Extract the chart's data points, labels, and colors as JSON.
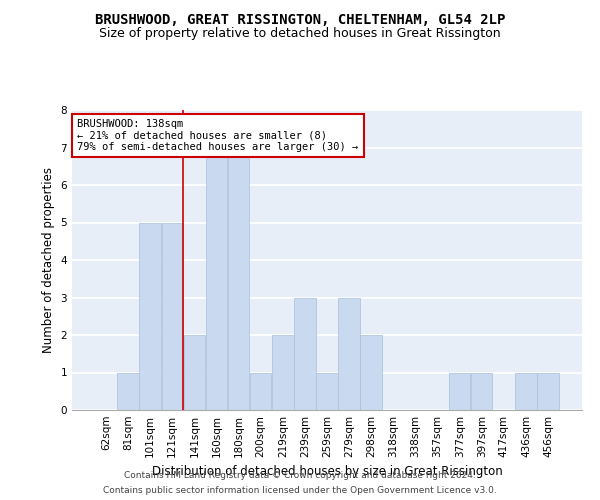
{
  "title": "BRUSHWOOD, GREAT RISSINGTON, CHELTENHAM, GL54 2LP",
  "subtitle": "Size of property relative to detached houses in Great Rissington",
  "xlabel": "Distribution of detached houses by size in Great Rissington",
  "ylabel": "Number of detached properties",
  "categories": [
    "62sqm",
    "81sqm",
    "101sqm",
    "121sqm",
    "141sqm",
    "160sqm",
    "180sqm",
    "200sqm",
    "219sqm",
    "239sqm",
    "259sqm",
    "279sqm",
    "298sqm",
    "318sqm",
    "338sqm",
    "357sqm",
    "377sqm",
    "397sqm",
    "417sqm",
    "436sqm",
    "456sqm"
  ],
  "values": [
    0,
    1,
    5,
    5,
    2,
    7,
    7,
    1,
    2,
    3,
    1,
    3,
    2,
    0,
    0,
    0,
    1,
    1,
    0,
    1,
    1
  ],
  "bar_color": "#c9d9ef",
  "bar_edgecolor": "#a8bfdd",
  "bar_width": 0.97,
  "ylim": [
    0,
    8
  ],
  "yticks": [
    0,
    1,
    2,
    3,
    4,
    5,
    6,
    7,
    8
  ],
  "annotation_text": "BRUSHWOOD: 138sqm\n← 21% of detached houses are smaller (8)\n79% of semi-detached houses are larger (30) →",
  "annotation_box_color": "#ffffff",
  "annotation_box_edgecolor": "#cc0000",
  "red_line_bin": 4,
  "footer_line1": "Contains HM Land Registry data © Crown copyright and database right 2024.",
  "footer_line2": "Contains public sector information licensed under the Open Government Licence v3.0.",
  "background_color": "#e8eef8",
  "grid_color": "#ffffff",
  "title_fontsize": 10,
  "subtitle_fontsize": 9,
  "axis_label_fontsize": 8.5,
  "tick_fontsize": 7.5,
  "annotation_fontsize": 7.5,
  "footer_fontsize": 6.5
}
